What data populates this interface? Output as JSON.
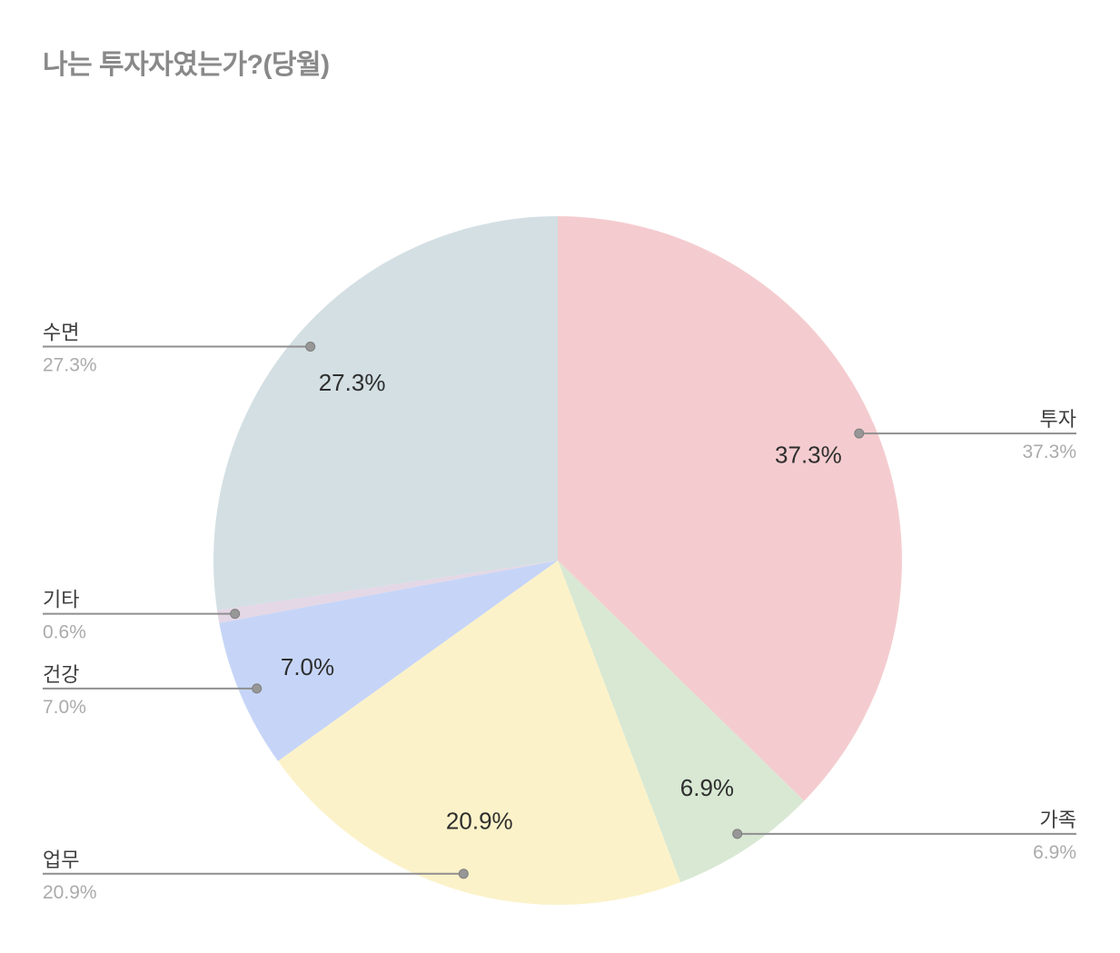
{
  "page": {
    "background": "#ffffff"
  },
  "chart_data": {
    "type": "pie",
    "title": "나는 투자자였는가?(당월)",
    "legend_position": "none",
    "grid": false,
    "start_angle": "top",
    "direction": "clockwise",
    "total_pct": 100.0,
    "slices": [
      {
        "id": "investment",
        "label": "투자",
        "value": 37.3,
        "pct_label": "37.3%",
        "color": "#f4cccf",
        "inner_label": "37.3%",
        "callout_side": "right"
      },
      {
        "id": "family",
        "label": "가족",
        "value": 6.9,
        "pct_label": "6.9%",
        "color": "#d8e8d3",
        "inner_label": "6.9%",
        "callout_side": "right"
      },
      {
        "id": "work",
        "label": "업무",
        "value": 20.9,
        "pct_label": "20.9%",
        "color": "#fcf2c9",
        "inner_label": "20.9%",
        "callout_side": "left"
      },
      {
        "id": "health",
        "label": "건강",
        "value": 7.0,
        "pct_label": "7.0%",
        "color": "#c6d5f7",
        "inner_label": "7.0%",
        "callout_side": "left"
      },
      {
        "id": "etc",
        "label": "기타",
        "value": 0.6,
        "pct_label": "0.6%",
        "color": "#e4d7e6",
        "inner_label": "",
        "callout_side": "left"
      },
      {
        "id": "sleep",
        "label": "수면",
        "value": 27.3,
        "pct_label": "27.3%",
        "color": "#d3dfe3",
        "inner_label": "27.3%",
        "callout_side": "left"
      }
    ],
    "colors_meta": {
      "title": "#898989",
      "category_label": "#3d3d3d",
      "pct_label": "#ababab",
      "inner_label": "#2e2e2e",
      "callout_line": "#8f8f8f",
      "callout_dot": "#979797",
      "callout_dot_edge": "#7f7f7f"
    }
  }
}
